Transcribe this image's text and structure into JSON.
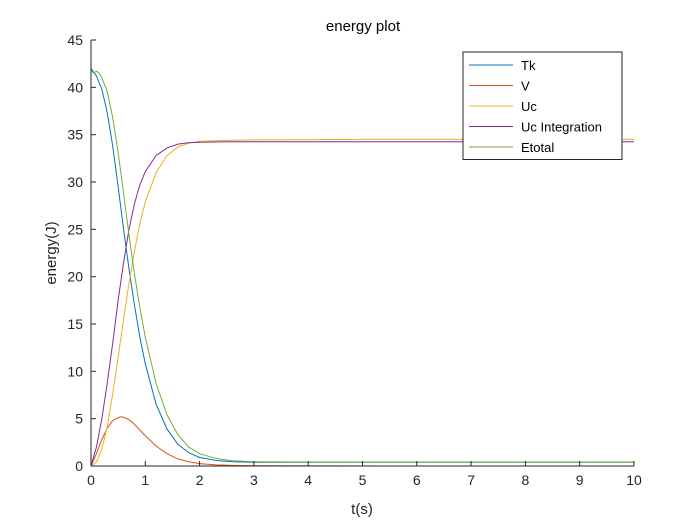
{
  "chart_data": {
    "type": "line",
    "title": "energy plot",
    "xlabel": "t(s)",
    "ylabel": "energy(J)",
    "xlim": [
      0,
      10
    ],
    "ylim": [
      0,
      45
    ],
    "xticks": [
      0,
      1,
      2,
      3,
      4,
      5,
      6,
      7,
      8,
      9,
      10
    ],
    "yticks": [
      0,
      5,
      10,
      15,
      20,
      25,
      30,
      35,
      40,
      45
    ],
    "grid": false,
    "legend_position": "top-right",
    "series": [
      {
        "name": "Tk",
        "color": "#0072BD",
        "points": [
          [
            0,
            42
          ],
          [
            0.05,
            41.6
          ],
          [
            0.1,
            41.2
          ],
          [
            0.2,
            39.8
          ],
          [
            0.3,
            37.3
          ],
          [
            0.4,
            33.8
          ],
          [
            0.5,
            29.5
          ],
          [
            0.6,
            25.0
          ],
          [
            0.7,
            20.8
          ],
          [
            0.8,
            17.0
          ],
          [
            0.9,
            13.6
          ],
          [
            1.0,
            10.8
          ],
          [
            1.2,
            6.5
          ],
          [
            1.4,
            3.9
          ],
          [
            1.6,
            2.3
          ],
          [
            1.8,
            1.4
          ],
          [
            2.0,
            0.9
          ],
          [
            2.3,
            0.6
          ],
          [
            2.6,
            0.45
          ],
          [
            3.0,
            0.4
          ],
          [
            5,
            0.4
          ],
          [
            10,
            0.4
          ]
        ]
      },
      {
        "name": "V",
        "color": "#D95319",
        "points": [
          [
            0,
            0
          ],
          [
            0.1,
            1.3
          ],
          [
            0.2,
            2.8
          ],
          [
            0.3,
            4.0
          ],
          [
            0.4,
            4.8
          ],
          [
            0.5,
            5.1
          ],
          [
            0.55,
            5.2
          ],
          [
            0.6,
            5.15
          ],
          [
            0.7,
            4.9
          ],
          [
            0.8,
            4.4
          ],
          [
            0.9,
            3.8
          ],
          [
            1.0,
            3.2
          ],
          [
            1.2,
            2.1
          ],
          [
            1.4,
            1.3
          ],
          [
            1.6,
            0.75
          ],
          [
            1.8,
            0.45
          ],
          [
            2.0,
            0.25
          ],
          [
            2.3,
            0.12
          ],
          [
            2.6,
            0.06
          ],
          [
            3.0,
            0.03
          ],
          [
            4.4,
            0.01
          ],
          [
            6,
            0
          ],
          [
            10,
            0
          ]
        ]
      },
      {
        "name": "Uc",
        "color": "#EDB120",
        "points": [
          [
            0,
            0
          ],
          [
            0.1,
            0.4
          ],
          [
            0.2,
            1.8
          ],
          [
            0.3,
            4.2
          ],
          [
            0.4,
            7.6
          ],
          [
            0.5,
            11.5
          ],
          [
            0.6,
            15.5
          ],
          [
            0.7,
            19.3
          ],
          [
            0.8,
            22.7
          ],
          [
            0.9,
            25.6
          ],
          [
            1.0,
            27.9
          ],
          [
            1.2,
            31.0
          ],
          [
            1.4,
            32.8
          ],
          [
            1.6,
            33.7
          ],
          [
            1.8,
            34.1
          ],
          [
            2.0,
            34.3
          ],
          [
            2.5,
            34.4
          ],
          [
            3.0,
            34.45
          ],
          [
            5,
            34.5
          ],
          [
            10,
            34.5
          ]
        ]
      },
      {
        "name": "Uc Integration",
        "color": "#7E2F8E",
        "points": [
          [
            0,
            0
          ],
          [
            0.1,
            2.0
          ],
          [
            0.2,
            5.0
          ],
          [
            0.3,
            8.8
          ],
          [
            0.4,
            13.0
          ],
          [
            0.5,
            17.5
          ],
          [
            0.6,
            21.5
          ],
          [
            0.7,
            25.0
          ],
          [
            0.8,
            27.7
          ],
          [
            0.9,
            29.7
          ],
          [
            1.0,
            31.1
          ],
          [
            1.2,
            32.8
          ],
          [
            1.4,
            33.6
          ],
          [
            1.6,
            34.0
          ],
          [
            1.8,
            34.15
          ],
          [
            2.0,
            34.2
          ],
          [
            2.5,
            34.25
          ],
          [
            5,
            34.25
          ],
          [
            10,
            34.25
          ]
        ]
      },
      {
        "name": "Etotal",
        "color": "#77AC30",
        "points": [
          [
            0,
            41.8
          ],
          [
            0.05,
            41.5
          ],
          [
            0.1,
            41.7
          ],
          [
            0.15,
            41.5
          ],
          [
            0.2,
            41.0
          ],
          [
            0.3,
            39.5
          ],
          [
            0.4,
            36.8
          ],
          [
            0.5,
            33.1
          ],
          [
            0.6,
            28.8
          ],
          [
            0.7,
            24.4
          ],
          [
            0.8,
            20.3
          ],
          [
            0.9,
            16.7
          ],
          [
            1.0,
            13.6
          ],
          [
            1.2,
            8.7
          ],
          [
            1.4,
            5.4
          ],
          [
            1.6,
            3.3
          ],
          [
            1.8,
            2.0
          ],
          [
            2.0,
            1.3
          ],
          [
            2.3,
            0.8
          ],
          [
            2.6,
            0.55
          ],
          [
            3.0,
            0.45
          ],
          [
            4,
            0.42
          ],
          [
            10,
            0.42
          ]
        ]
      }
    ]
  }
}
